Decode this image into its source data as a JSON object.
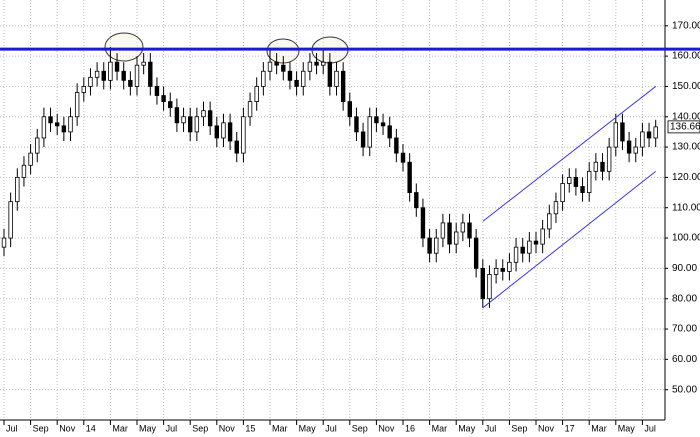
{
  "chart_data": {
    "type": "candlestick",
    "categories": [
      "Jul",
      null,
      null,
      null,
      "Sep",
      null,
      null,
      null,
      "Nov",
      null,
      null,
      null,
      "14",
      null,
      null,
      null,
      "Mar",
      null,
      null,
      null,
      "May",
      null,
      null,
      null,
      "Jul",
      null,
      null,
      null,
      "Sep",
      null,
      null,
      null,
      "Nov",
      null,
      null,
      null,
      "15",
      null,
      null,
      null,
      "Mar",
      null,
      null,
      null,
      "May",
      null,
      null,
      null,
      "Jul",
      null,
      null,
      null,
      "Sep",
      null,
      null,
      null,
      "Nov",
      null,
      null,
      null,
      "16",
      null,
      null,
      null,
      "Mar",
      null,
      null,
      null,
      "May",
      null,
      null,
      null,
      "Jul",
      null,
      null,
      null,
      "Sep",
      null,
      null,
      null,
      "Nov",
      null,
      null,
      null,
      "17",
      null,
      null,
      null,
      "Mar",
      null,
      null,
      null,
      "May",
      null,
      null,
      null,
      "Jul",
      null,
      null
    ],
    "open": [
      97,
      100,
      112,
      120,
      124,
      128,
      133,
      140,
      138,
      137,
      135,
      140,
      148,
      150,
      153,
      155,
      152,
      158,
      155,
      152,
      150,
      157,
      158,
      150,
      147,
      145,
      143,
      138,
      140,
      135,
      140,
      142,
      137,
      133,
      138,
      132,
      128,
      140,
      145,
      150,
      155,
      158,
      157,
      155,
      152,
      150,
      155,
      158,
      157,
      158,
      150,
      155,
      145,
      140,
      135,
      130,
      140,
      138,
      137,
      133,
      128,
      125,
      115,
      110,
      100,
      95,
      100,
      105,
      98,
      102,
      105,
      100,
      90,
      80,
      88,
      90,
      89,
      92,
      97,
      95,
      99,
      98,
      103,
      108,
      112,
      118,
      120,
      117,
      115,
      122,
      125,
      122,
      130,
      138,
      132,
      128,
      130,
      135,
      133
    ],
    "high": [
      103,
      115,
      123,
      127,
      131,
      136,
      143,
      143,
      141,
      140,
      143,
      151,
      153,
      156,
      158,
      158,
      163,
      161,
      158,
      155,
      160,
      161,
      161,
      153,
      150,
      148,
      146,
      143,
      143,
      143,
      145,
      145,
      140,
      141,
      141,
      135,
      143,
      148,
      153,
      158,
      162,
      161,
      160,
      158,
      155,
      158,
      161,
      161,
      162,
      161,
      158,
      158,
      148,
      143,
      138,
      143,
      143,
      141,
      140,
      136,
      131,
      128,
      118,
      113,
      103,
      103,
      108,
      108,
      105,
      108,
      108,
      103,
      93,
      91,
      93,
      93,
      95,
      100,
      100,
      102,
      102,
      106,
      111,
      115,
      121,
      123,
      123,
      120,
      125,
      128,
      128,
      133,
      141,
      141,
      135,
      133,
      138,
      138,
      139
    ],
    "low": [
      94,
      97,
      109,
      117,
      121,
      125,
      130,
      135,
      134,
      132,
      132,
      137,
      145,
      147,
      150,
      149,
      149,
      152,
      149,
      147,
      147,
      154,
      147,
      144,
      142,
      140,
      135,
      135,
      132,
      132,
      137,
      134,
      130,
      130,
      129,
      125,
      125,
      137,
      142,
      147,
      152,
      154,
      152,
      149,
      147,
      147,
      152,
      154,
      154,
      147,
      147,
      142,
      137,
      132,
      127,
      127,
      135,
      134,
      130,
      125,
      122,
      112,
      107,
      97,
      92,
      92,
      97,
      95,
      95,
      99,
      97,
      87,
      77,
      77,
      85,
      86,
      86,
      89,
      92,
      92,
      95,
      95,
      100,
      105,
      109,
      115,
      114,
      112,
      112,
      119,
      119,
      119,
      127,
      129,
      125,
      125,
      127,
      130,
      130
    ],
    "close": [
      100,
      112,
      120,
      124,
      128,
      133,
      140,
      138,
      137,
      135,
      140,
      148,
      150,
      153,
      155,
      152,
      158,
      155,
      152,
      150,
      157,
      158,
      150,
      147,
      145,
      143,
      138,
      140,
      135,
      140,
      142,
      137,
      133,
      138,
      132,
      128,
      140,
      145,
      150,
      155,
      158,
      157,
      155,
      152,
      150,
      155,
      158,
      157,
      158,
      150,
      155,
      145,
      140,
      135,
      130,
      140,
      138,
      137,
      133,
      128,
      125,
      115,
      110,
      100,
      95,
      100,
      105,
      98,
      102,
      105,
      100,
      90,
      80,
      88,
      90,
      89,
      92,
      97,
      95,
      99,
      98,
      103,
      108,
      112,
      118,
      120,
      117,
      115,
      122,
      125,
      122,
      130,
      138,
      132,
      128,
      130,
      135,
      133,
      136.66
    ],
    "color": "#000000",
    "ylim": [
      40,
      178.5
    ],
    "yticks": [
      {
        "value": 50,
        "label": "50.00"
      },
      {
        "value": 60,
        "label": "60.00"
      },
      {
        "value": 70,
        "label": "70.00"
      },
      {
        "value": 80,
        "label": "80.00"
      },
      {
        "value": 90,
        "label": "90.00"
      },
      {
        "value": 100,
        "label": "100.00"
      },
      {
        "value": 110,
        "label": "110.00"
      },
      {
        "value": 120,
        "label": "120.00"
      },
      {
        "value": 130,
        "label": "130.00"
      },
      {
        "value": 140,
        "label": "140.00"
      },
      {
        "value": 150,
        "label": "150.00"
      },
      {
        "value": 160,
        "label": "160.00"
      },
      {
        "value": 170,
        "label": "170.00"
      }
    ],
    "grid": true,
    "resistance": 162.3,
    "resistance_color": "#1c1ccc",
    "channel": {
      "x": [
        72,
        98
      ],
      "upper": [
        105.5,
        150
      ],
      "lower": [
        77,
        122
      ],
      "color": "#3a3ad0"
    },
    "last_price": 136.66
  }
}
